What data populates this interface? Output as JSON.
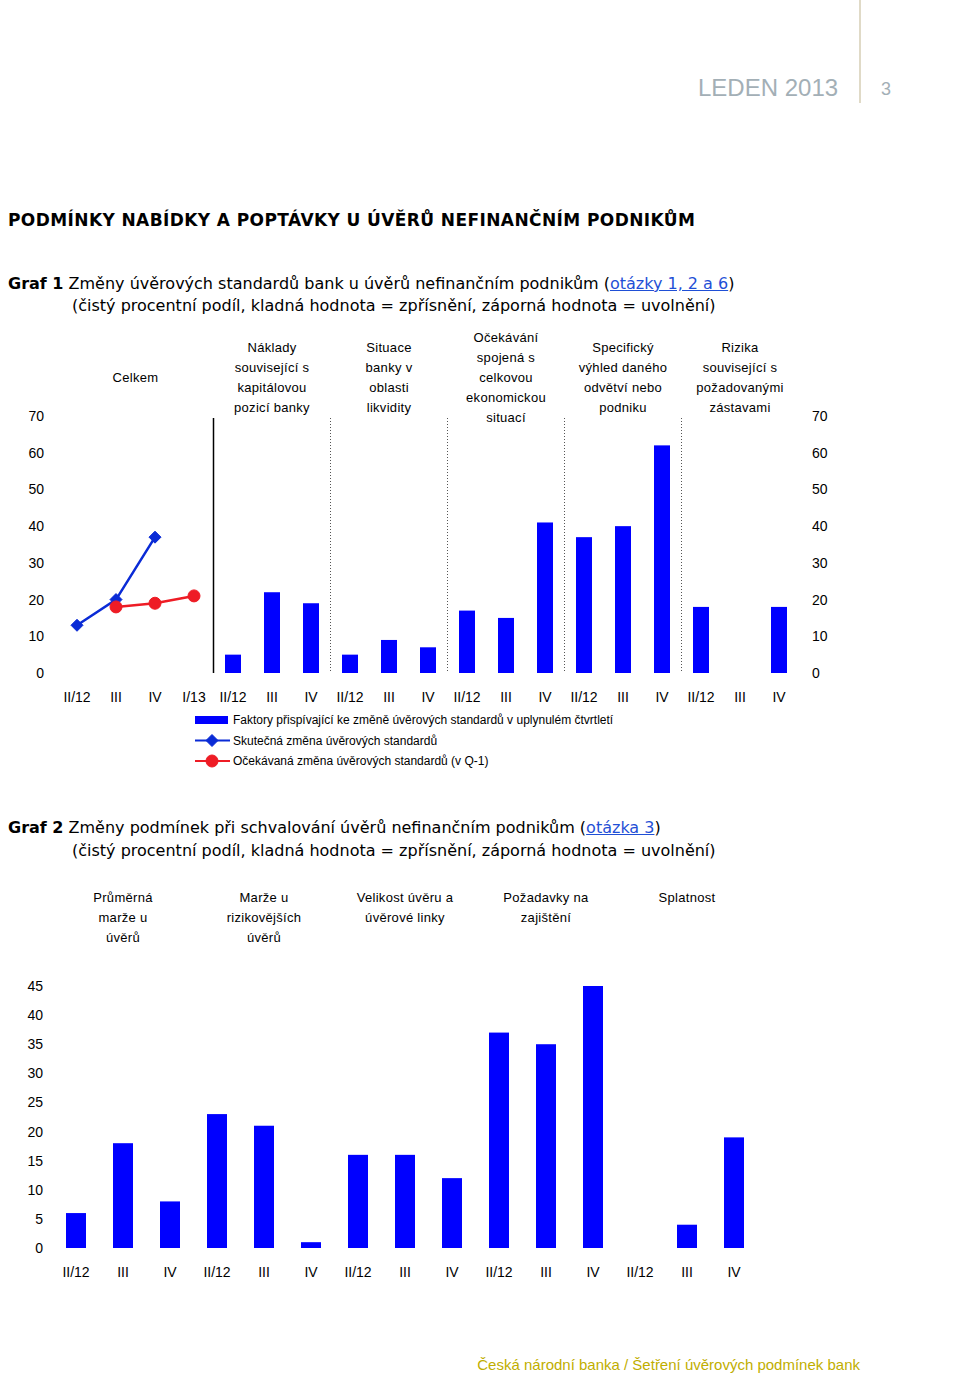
{
  "page": {
    "header": "LEDEN 2013",
    "page_number": "3",
    "section_title": "PODMÍNKY NABÍDKY A POPTÁVKY U ÚVĚRŮ NEFINANČNÍM PODNIKŮM",
    "footer": "Česká národní banka / Šetření úvěrových podmínek bank"
  },
  "chart_data": [
    {
      "type": "bar",
      "title": "Graf 1 Změny úvěrových standardů bank u úvěrů nefinančním podnikům (otázky 1, 2 a 6)",
      "subtitle": "(čistý procentní podíl, kladná hodnota = zpřísnění, záporná hodnota = uvolnění)",
      "category_groups": [
        {
          "label": "Celkem",
          "categories": [
            "II/12",
            "III",
            "IV",
            "I/13"
          ]
        },
        {
          "label": "Náklady související s kapitálovou pozicí banky",
          "categories": [
            "II/12",
            "III",
            "IV"
          ]
        },
        {
          "label": "Situace banky v oblasti likvidity",
          "categories": [
            "II/12",
            "III",
            "IV"
          ]
        },
        {
          "label": "Očekávání spojená s celkovou ekonomickou situací",
          "categories": [
            "II/12",
            "III",
            "IV"
          ]
        },
        {
          "label": "Specifický výhled daného odvětví nebo podniku",
          "categories": [
            "II/12",
            "III",
            "IV"
          ]
        },
        {
          "label": "Rizika související s požadovanými zástavami",
          "categories": [
            "II/12",
            "III",
            "IV"
          ]
        }
      ],
      "series": [
        {
          "name": "Faktory přispívající ke změně úvěrových standardů v uplynulém čtvrtletí",
          "color": "#0000ff",
          "values": [
            null,
            null,
            null,
            null,
            5,
            22,
            19,
            5,
            9,
            7,
            17,
            15,
            41,
            37,
            40,
            62,
            18,
            0,
            18
          ]
        },
        {
          "name": "Skutečná změna úvěrových standardů",
          "type": "line",
          "marker": "diamond",
          "color": "#0a2bd6",
          "values": [
            13,
            20,
            37,
            null,
            null,
            null,
            null,
            null,
            null,
            null,
            null,
            null,
            null,
            null,
            null,
            null,
            null,
            null,
            null
          ]
        },
        {
          "name": "Očekávaná změna úvěrových standardů (v Q-1)",
          "type": "line",
          "marker": "circle",
          "color": "#ee1c25",
          "values": [
            null,
            18,
            19,
            21,
            null,
            null,
            null,
            null,
            null,
            null,
            null,
            null,
            null,
            null,
            null,
            null,
            null,
            null,
            null
          ]
        }
      ],
      "ylim": [
        0,
        70
      ],
      "yticks": [
        0,
        10,
        20,
        30,
        40,
        50,
        60,
        70
      ],
      "grid": false,
      "legend": "bottom"
    },
    {
      "type": "bar",
      "title": "Graf 2 Změny podmínek při schvalování úvěrů nefinančním podnikům (otázka 3)",
      "subtitle": "(čistý procentní podíl, kladná hodnota = zpřísnění, záporná hodnota = uvolnění)",
      "category_groups": [
        {
          "label": "Průměrná marže u úvěrů",
          "categories": [
            "II/12",
            "III",
            "IV"
          ]
        },
        {
          "label": "Marže u rizikovějších úvěrů",
          "categories": [
            "II/12",
            "III",
            "IV"
          ]
        },
        {
          "label": "Velikost úvěru a úvěrové linky",
          "categories": [
            "II/12",
            "III",
            "IV"
          ]
        },
        {
          "label": "Požadavky na zajištění",
          "categories": [
            "II/12",
            "III",
            "IV"
          ]
        },
        {
          "label": "Splatnost",
          "categories": [
            "II/12",
            "III",
            "IV"
          ]
        }
      ],
      "values": [
        6,
        18,
        8,
        23,
        21,
        1,
        16,
        16,
        12,
        37,
        35,
        45,
        0,
        4,
        19
      ],
      "color": "#0000ff",
      "ylim": [
        0,
        45
      ],
      "yticks": [
        0,
        5,
        10,
        15,
        20,
        25,
        30,
        35,
        40,
        45
      ],
      "grid": false
    }
  ]
}
